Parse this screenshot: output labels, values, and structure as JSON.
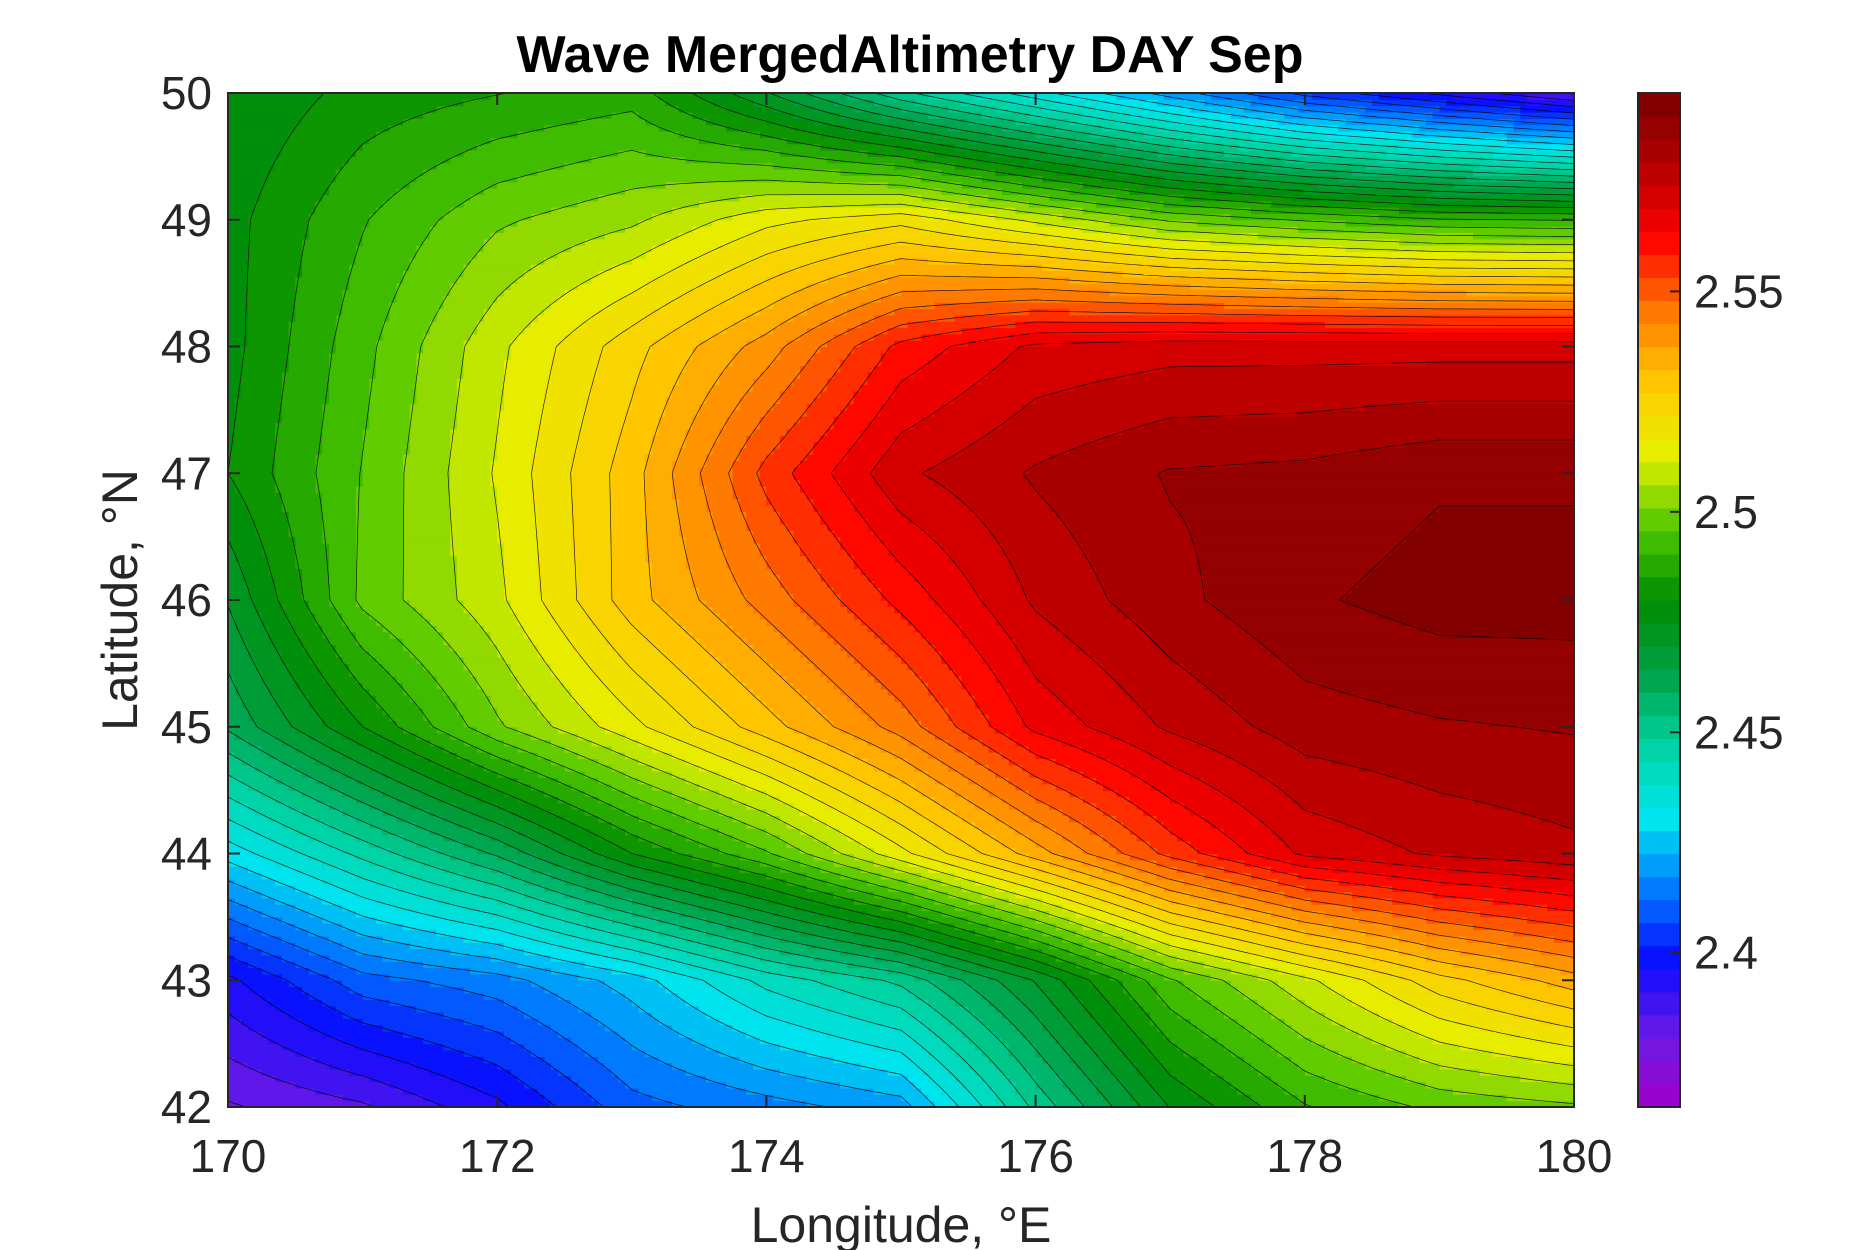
{
  "chart_data": {
    "type": "contour",
    "title": "Wave MergedAltimetry DAY Sep",
    "xlabel": "Longitude, °E",
    "ylabel": "Latitude, °N",
    "xlim": [
      170,
      180
    ],
    "ylim": [
      42,
      50
    ],
    "xticks": [
      "170",
      "172",
      "174",
      "176",
      "178",
      "180"
    ],
    "yticks": [
      "42",
      "43",
      "44",
      "45",
      "46",
      "47",
      "48",
      "49",
      "50"
    ],
    "colorbar": {
      "range": [
        2.365,
        2.595
      ],
      "ticks": [
        "2.4",
        "2.45",
        "2.5",
        "2.55"
      ],
      "colormap": [
        "#a100c8",
        "#6a1ae6",
        "#0a0aff",
        "#0078ff",
        "#00e6f0",
        "#00d2a0",
        "#00a046",
        "#008c00",
        "#50c800",
        "#e6f000",
        "#ffc800",
        "#ff7800",
        "#ff0000",
        "#b40000",
        "#780000"
      ],
      "levels": 44
    },
    "lon": [
      170,
      171,
      172,
      173,
      174,
      175,
      176,
      177,
      178,
      179,
      180
    ],
    "lat": [
      42,
      43,
      44,
      45,
      46,
      47,
      48,
      49,
      50
    ],
    "z": [
      [
        2.38,
        2.385,
        2.395,
        2.41,
        2.415,
        2.42,
        2.45,
        2.475,
        2.49,
        2.497,
        2.5
      ],
      [
        2.395,
        2.41,
        2.415,
        2.425,
        2.44,
        2.45,
        2.47,
        2.495,
        2.51,
        2.525,
        2.535
      ],
      [
        2.43,
        2.445,
        2.46,
        2.48,
        2.495,
        2.515,
        2.535,
        2.555,
        2.57,
        2.575,
        2.578
      ],
      [
        2.46,
        2.48,
        2.5,
        2.515,
        2.53,
        2.545,
        2.565,
        2.575,
        2.582,
        2.584,
        2.585
      ],
      [
        2.47,
        2.497,
        2.51,
        2.53,
        2.545,
        2.56,
        2.575,
        2.583,
        2.589,
        2.592,
        2.592
      ],
      [
        2.48,
        2.496,
        2.512,
        2.53,
        2.555,
        2.573,
        2.58,
        2.585,
        2.586,
        2.589,
        2.589
      ],
      [
        2.478,
        2.494,
        2.51,
        2.525,
        2.54,
        2.56,
        2.57,
        2.572,
        2.572,
        2.572,
        2.572
      ],
      [
        2.478,
        2.49,
        2.5,
        2.505,
        2.515,
        2.52,
        2.51,
        2.5,
        2.495,
        2.491,
        2.49
      ],
      [
        2.475,
        2.482,
        2.485,
        2.488,
        2.47,
        2.45,
        2.435,
        2.42,
        2.405,
        2.395,
        2.385
      ]
    ]
  }
}
